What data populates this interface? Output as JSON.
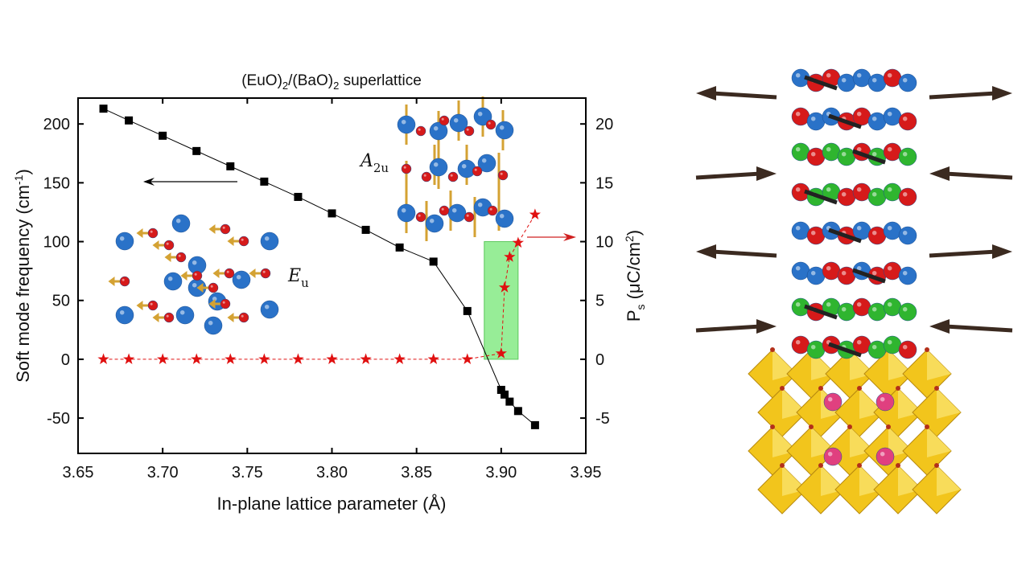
{
  "chart_data": {
    "type": "scatter",
    "title_main": "(EuO)",
    "title_sub1": "2",
    "title_mid": "/(BaO)",
    "title_sub2": "2",
    "title_end": " superlattice",
    "xlabel": "In-plane lattice parameter (Å)",
    "ylabel": "Soft mode frequency (cm",
    "ylabel_sup": "-1",
    "ylabel_end": ")",
    "y2label": "P",
    "y2label_sub": "s",
    "y2label_rest": " (μC/cm",
    "y2label_sup": "2",
    "y2label_end": ")",
    "xlim": [
      3.65,
      3.95
    ],
    "ylim": [
      -80,
      222
    ],
    "y2lim": [
      -8,
      22.2
    ],
    "xticks": [
      "3.65",
      "3.70",
      "3.75",
      "3.80",
      "3.85",
      "3.90",
      "3.95"
    ],
    "yticks": [
      "-50",
      "0",
      "50",
      "100",
      "150",
      "200"
    ],
    "y2ticks": [
      "-5",
      "0",
      "5",
      "10",
      "15",
      "20"
    ],
    "series": [
      {
        "name": "Soft mode frequency",
        "axis": "left",
        "marker": "square",
        "color": "#000000",
        "x": [
          3.665,
          3.68,
          3.7,
          3.72,
          3.74,
          3.76,
          3.78,
          3.8,
          3.82,
          3.84,
          3.86,
          3.88,
          3.9,
          3.902,
          3.905,
          3.91,
          3.92
        ],
        "y": [
          213,
          203,
          190,
          177,
          164,
          151,
          138,
          124,
          110,
          95,
          83,
          41,
          -26,
          -30,
          -36,
          -44,
          -56
        ]
      },
      {
        "name": "Ps",
        "axis": "right",
        "marker": "star",
        "color": "#e01010",
        "x": [
          3.665,
          3.68,
          3.7,
          3.72,
          3.74,
          3.76,
          3.78,
          3.8,
          3.82,
          3.84,
          3.86,
          3.88,
          3.9,
          3.902,
          3.905,
          3.91,
          3.92
        ],
        "y": [
          0,
          0,
          0,
          0,
          0,
          0,
          0,
          0,
          0,
          0,
          0,
          0,
          0.5,
          6.1,
          8.7,
          9.9,
          12.3
        ]
      }
    ],
    "highlight_region": {
      "x": [
        3.89,
        3.91
      ],
      "y2": [
        0,
        10
      ],
      "color": "#7de87d"
    },
    "annotations": {
      "eu_label": "E",
      "eu_sub": "u",
      "a2u_label": "A",
      "a2u_sub": "2u"
    }
  },
  "colors": {
    "eu": "#2a72c8",
    "o": "#d61a1a",
    "ba": "#2fb52f",
    "arrow": "#3b2a20",
    "octa": "#f2c51c"
  }
}
